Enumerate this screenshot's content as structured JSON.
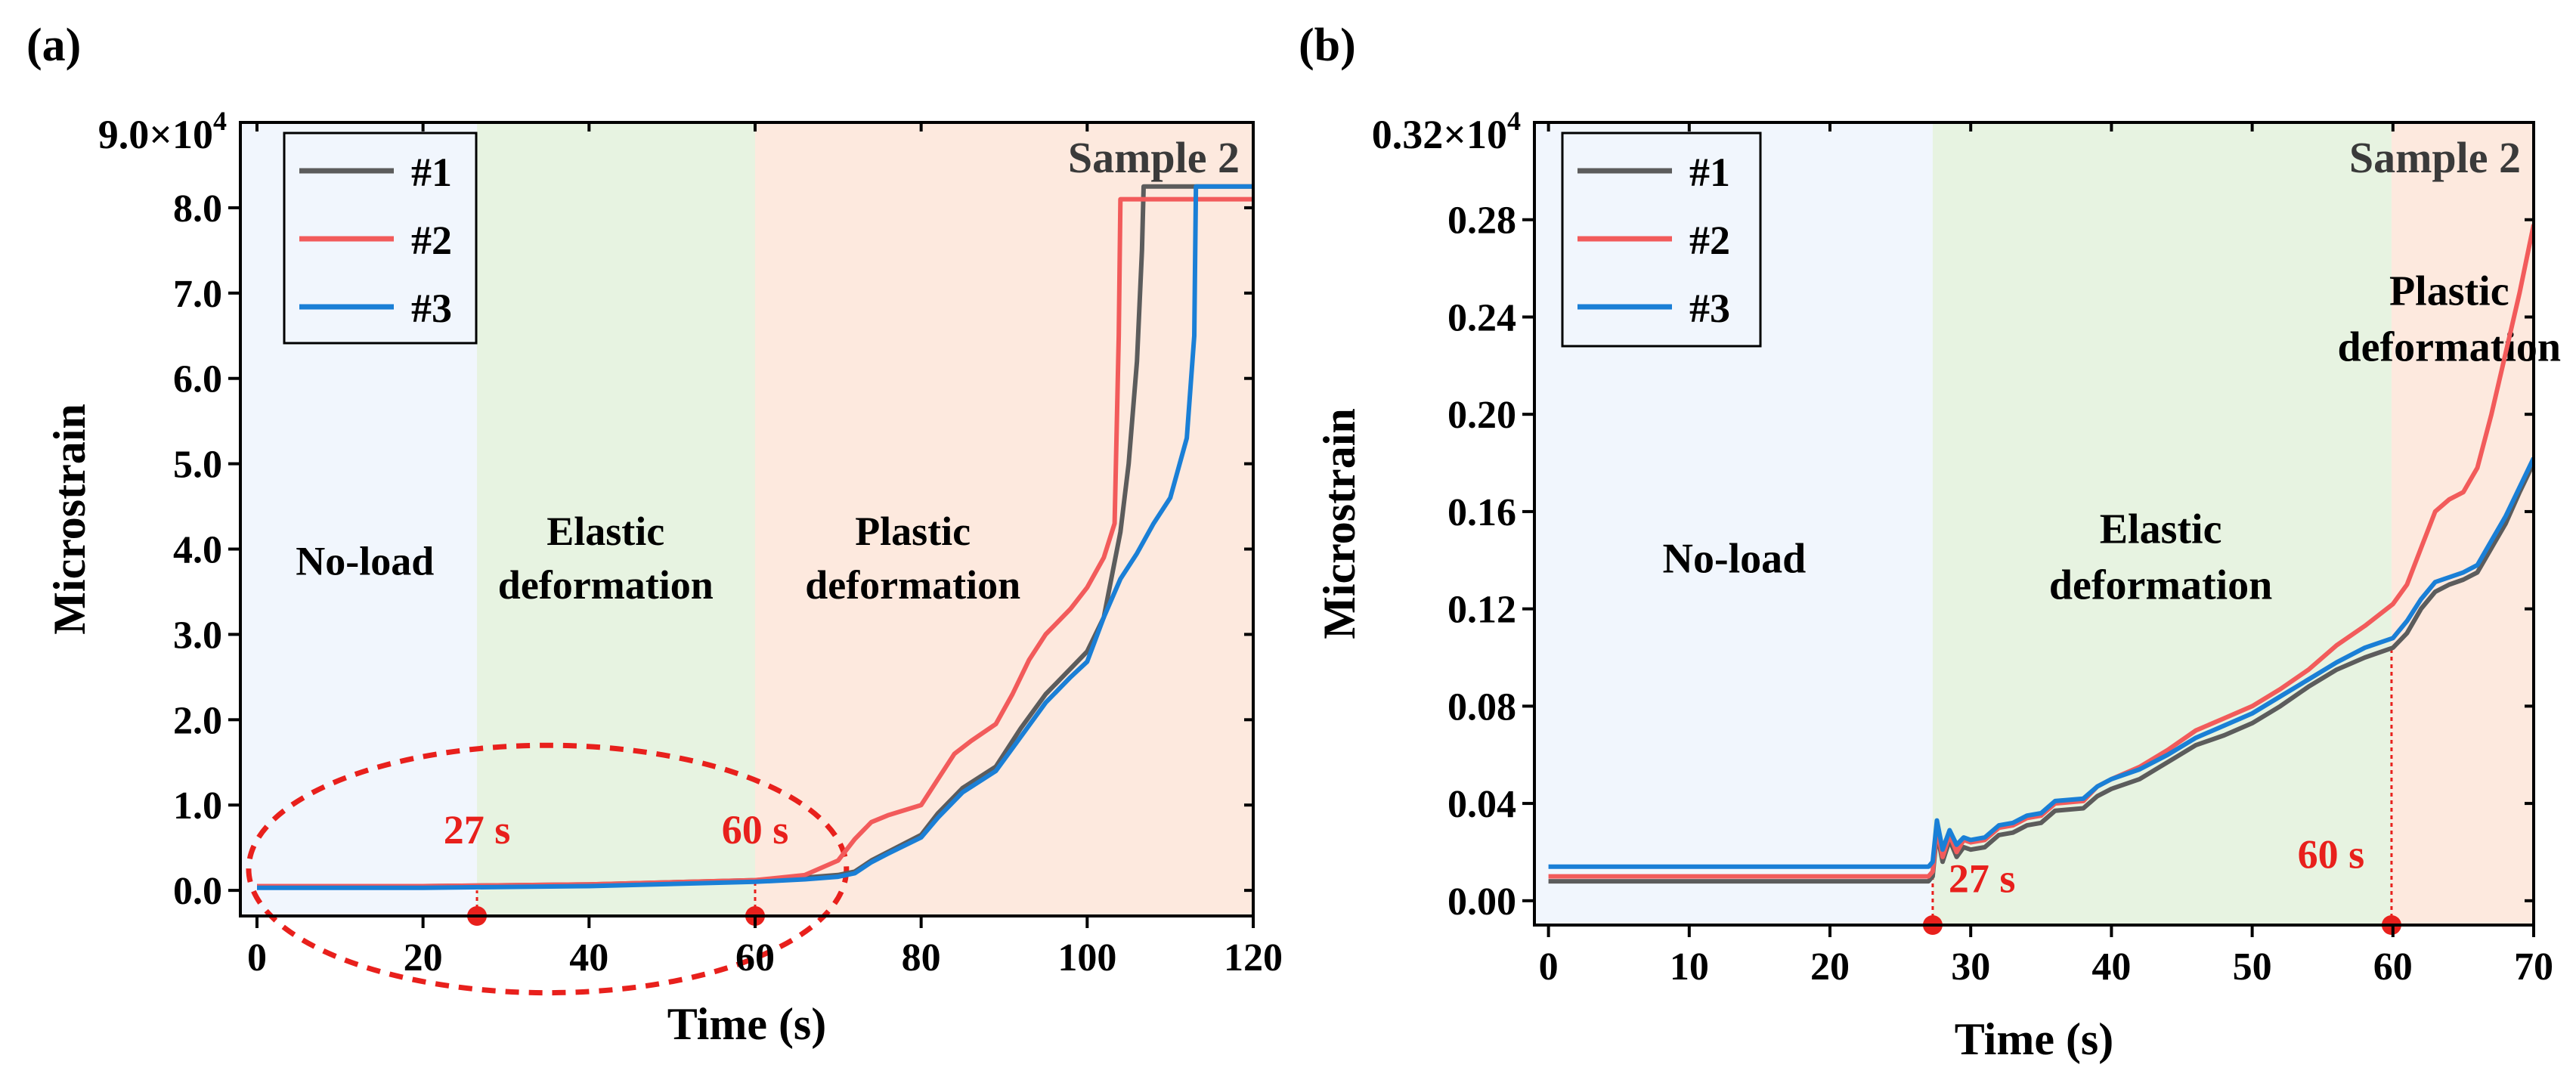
{
  "colors": {
    "no_load": "#f1f6fd",
    "elastic": "#e7f3e1",
    "plastic": "#fde9de",
    "series_1": "#5c5c5c",
    "series_2": "#f25b5b",
    "series_3": "#1a7fd6",
    "annotation": "#e8201c",
    "ink": "#000000",
    "sample_label": "#3a3a3a"
  },
  "chart_data": [
    {
      "panel_label": "(a)",
      "type": "line",
      "title": "Sample 2",
      "xlabel": "Time (s)",
      "ylabel": "Microstrain",
      "xlim": [
        -2,
        120
      ],
      "ylim": [
        -0.3,
        9.0
      ],
      "y_multiplier_label": "9.0×10",
      "y_multiplier_exp": "4",
      "xticks": [
        0,
        20,
        40,
        60,
        80,
        100,
        120
      ],
      "xtick_labels": [
        "0",
        "20",
        "40",
        "60",
        "80",
        "100",
        "120"
      ],
      "yticks": [
        0,
        1,
        2,
        3,
        4,
        5,
        6,
        7,
        8
      ],
      "ytick_labels": [
        "0.0",
        "1.0",
        "2.0",
        "3.0",
        "4.0",
        "5.0",
        "6.0",
        "7.0",
        "8.0"
      ],
      "grid": false,
      "legend_position": "top-left",
      "regions": [
        {
          "from": -2,
          "to": 26.5,
          "color_key": "no_load",
          "label_lines": [
            "No-load"
          ],
          "label_x": 13,
          "label_y": 3.7
        },
        {
          "from": 26.5,
          "to": 60,
          "color_key": "elastic",
          "label_lines": [
            "Elastic",
            "deformation"
          ],
          "label_x": 42,
          "label_y": 4.05
        },
        {
          "from": 60,
          "to": 120,
          "color_key": "plastic",
          "label_lines": [
            "Plastic",
            "deformation"
          ],
          "label_x": 79,
          "label_y": 4.05
        }
      ],
      "markers": [
        {
          "x": 26.5,
          "label": "27 s",
          "label_x": 26.5,
          "label_y": 0.55,
          "line_to": 0
        },
        {
          "x": 60,
          "label": "60 s",
          "label_x": 60,
          "label_y": 0.55,
          "line_to": 0.1
        }
      ],
      "ellipse": {
        "cx": 35,
        "cy": 0.25,
        "rx": 36,
        "ry": 1.45
      },
      "series": [
        {
          "name": "#1",
          "color_key": "series_1",
          "width": 6,
          "x": [
            0,
            20,
            40,
            60,
            66,
            70,
            72,
            74,
            76,
            80,
            82,
            85,
            89,
            92,
            95,
            98,
            100,
            102,
            104,
            105,
            106,
            106.6,
            106.8,
            120
          ],
          "y": [
            0.05,
            0.05,
            0.07,
            0.12,
            0.15,
            0.18,
            0.22,
            0.35,
            0.45,
            0.65,
            0.9,
            1.2,
            1.45,
            1.9,
            2.3,
            2.6,
            2.8,
            3.2,
            4.2,
            5.0,
            6.2,
            7.5,
            8.25,
            8.25
          ]
        },
        {
          "name": "#2",
          "color_key": "series_2",
          "width": 6,
          "x": [
            0,
            20,
            40,
            60,
            66,
            70,
            72,
            74,
            76,
            80,
            82,
            84,
            86,
            89,
            91,
            93,
            95,
            98,
            100,
            102,
            103.3,
            103.8,
            104,
            120
          ],
          "y": [
            0.05,
            0.05,
            0.07,
            0.12,
            0.18,
            0.35,
            0.6,
            0.8,
            0.88,
            1.0,
            1.3,
            1.6,
            1.75,
            1.95,
            2.3,
            2.7,
            3.0,
            3.3,
            3.55,
            3.9,
            4.3,
            6.5,
            8.1,
            8.1
          ]
        },
        {
          "name": "#3",
          "color_key": "series_3",
          "width": 6,
          "x": [
            0,
            20,
            40,
            60,
            66,
            70,
            72,
            74,
            76,
            80,
            82,
            85,
            89,
            92,
            95,
            98,
            100,
            102,
            104,
            106,
            108,
            110,
            112,
            112.9,
            113.1,
            113.3,
            120
          ],
          "y": [
            0.03,
            0.03,
            0.05,
            0.1,
            0.13,
            0.16,
            0.2,
            0.33,
            0.43,
            0.62,
            0.85,
            1.15,
            1.4,
            1.8,
            2.2,
            2.5,
            2.68,
            3.2,
            3.65,
            3.95,
            4.3,
            4.6,
            5.3,
            6.5,
            8.25,
            8.25,
            8.25
          ]
        }
      ]
    },
    {
      "panel_label": "(b)",
      "type": "line",
      "title": "Sample 2",
      "xlabel": "Time (s)",
      "ylabel": "Microstrain",
      "xlim": [
        -1,
        70
      ],
      "ylim": [
        -0.01,
        0.32
      ],
      "y_multiplier_label": "0.32×10",
      "y_multiplier_exp": "4",
      "xticks": [
        0,
        10,
        20,
        30,
        40,
        50,
        60,
        70
      ],
      "xtick_labels": [
        "0",
        "10",
        "20",
        "30",
        "40",
        "50",
        "60",
        "70"
      ],
      "yticks": [
        0.0,
        0.04,
        0.08,
        0.12,
        0.16,
        0.2,
        0.24,
        0.28
      ],
      "ytick_labels": [
        "0.00",
        "0.04",
        "0.08",
        "0.12",
        "0.16",
        "0.20",
        "0.24",
        "0.28"
      ],
      "grid": false,
      "legend_position": "top-left",
      "regions": [
        {
          "from": -1,
          "to": 27.3,
          "color_key": "no_load",
          "label_lines": [
            "No-load"
          ],
          "label_x": 13.2,
          "label_y": 0.135
        },
        {
          "from": 27.3,
          "to": 59.9,
          "color_key": "elastic",
          "label_lines": [
            "Elastic",
            "deformation"
          ],
          "label_x": 43.5,
          "label_y": 0.147
        },
        {
          "from": 59.9,
          "to": 70,
          "color_key": "plastic",
          "label_lines": [
            "Plastic",
            "deformation"
          ],
          "label_x": 64,
          "label_y": 0.245
        }
      ],
      "markers": [
        {
          "x": 27.3,
          "label": "27 s",
          "label_x": 30.8,
          "label_y": 0.0035,
          "line_to": 0.012
        },
        {
          "x": 59.9,
          "label": "60 s",
          "label_x": 55.6,
          "label_y": 0.0135,
          "line_to": 0.104
        }
      ],
      "series": [
        {
          "name": "#1",
          "color_key": "series_1",
          "width": 6,
          "x": [
            0,
            10,
            20,
            27,
            27.3,
            27.6,
            28,
            28.5,
            29,
            29.5,
            30,
            31,
            32,
            33,
            34,
            35,
            36,
            38,
            39,
            40,
            42,
            44,
            46,
            48,
            50,
            52,
            54,
            56,
            58,
            60,
            61,
            62,
            63,
            64,
            65,
            66,
            67,
            68,
            69,
            70
          ],
          "y": [
            0.008,
            0.008,
            0.008,
            0.008,
            0.01,
            0.028,
            0.016,
            0.025,
            0.018,
            0.022,
            0.021,
            0.022,
            0.027,
            0.028,
            0.031,
            0.032,
            0.037,
            0.038,
            0.043,
            0.046,
            0.05,
            0.057,
            0.064,
            0.068,
            0.073,
            0.08,
            0.088,
            0.095,
            0.1,
            0.104,
            0.11,
            0.12,
            0.127,
            0.13,
            0.132,
            0.135,
            0.145,
            0.155,
            0.168,
            0.18
          ]
        },
        {
          "name": "#2",
          "color_key": "series_2",
          "width": 6,
          "x": [
            0,
            10,
            20,
            27,
            27.3,
            27.6,
            28,
            28.5,
            29,
            29.5,
            30,
            31,
            32,
            33,
            34,
            35,
            36,
            38,
            39,
            40,
            42,
            44,
            46,
            48,
            50,
            52,
            54,
            56,
            58,
            60,
            61,
            62,
            63,
            64,
            65,
            66,
            67,
            68,
            69,
            70
          ],
          "y": [
            0.01,
            0.01,
            0.01,
            0.01,
            0.012,
            0.03,
            0.018,
            0.027,
            0.02,
            0.025,
            0.024,
            0.025,
            0.03,
            0.031,
            0.034,
            0.035,
            0.04,
            0.041,
            0.047,
            0.05,
            0.055,
            0.062,
            0.07,
            0.075,
            0.08,
            0.087,
            0.095,
            0.105,
            0.113,
            0.122,
            0.13,
            0.145,
            0.16,
            0.165,
            0.168,
            0.178,
            0.2,
            0.225,
            0.25,
            0.278
          ]
        },
        {
          "name": "#3",
          "color_key": "series_3",
          "width": 6,
          "x": [
            0,
            10,
            20,
            27,
            27.3,
            27.6,
            28,
            28.5,
            29,
            29.5,
            30,
            31,
            32,
            33,
            34,
            35,
            36,
            38,
            39,
            40,
            42,
            44,
            46,
            48,
            50,
            52,
            54,
            56,
            58,
            60,
            61,
            62,
            63,
            64,
            65,
            66,
            67,
            68,
            69,
            70
          ],
          "y": [
            0.014,
            0.014,
            0.014,
            0.014,
            0.016,
            0.033,
            0.021,
            0.029,
            0.023,
            0.026,
            0.025,
            0.026,
            0.031,
            0.032,
            0.035,
            0.036,
            0.041,
            0.042,
            0.047,
            0.05,
            0.054,
            0.06,
            0.067,
            0.072,
            0.077,
            0.084,
            0.091,
            0.098,
            0.104,
            0.108,
            0.115,
            0.124,
            0.131,
            0.133,
            0.135,
            0.138,
            0.148,
            0.158,
            0.17,
            0.182
          ]
        }
      ]
    }
  ]
}
